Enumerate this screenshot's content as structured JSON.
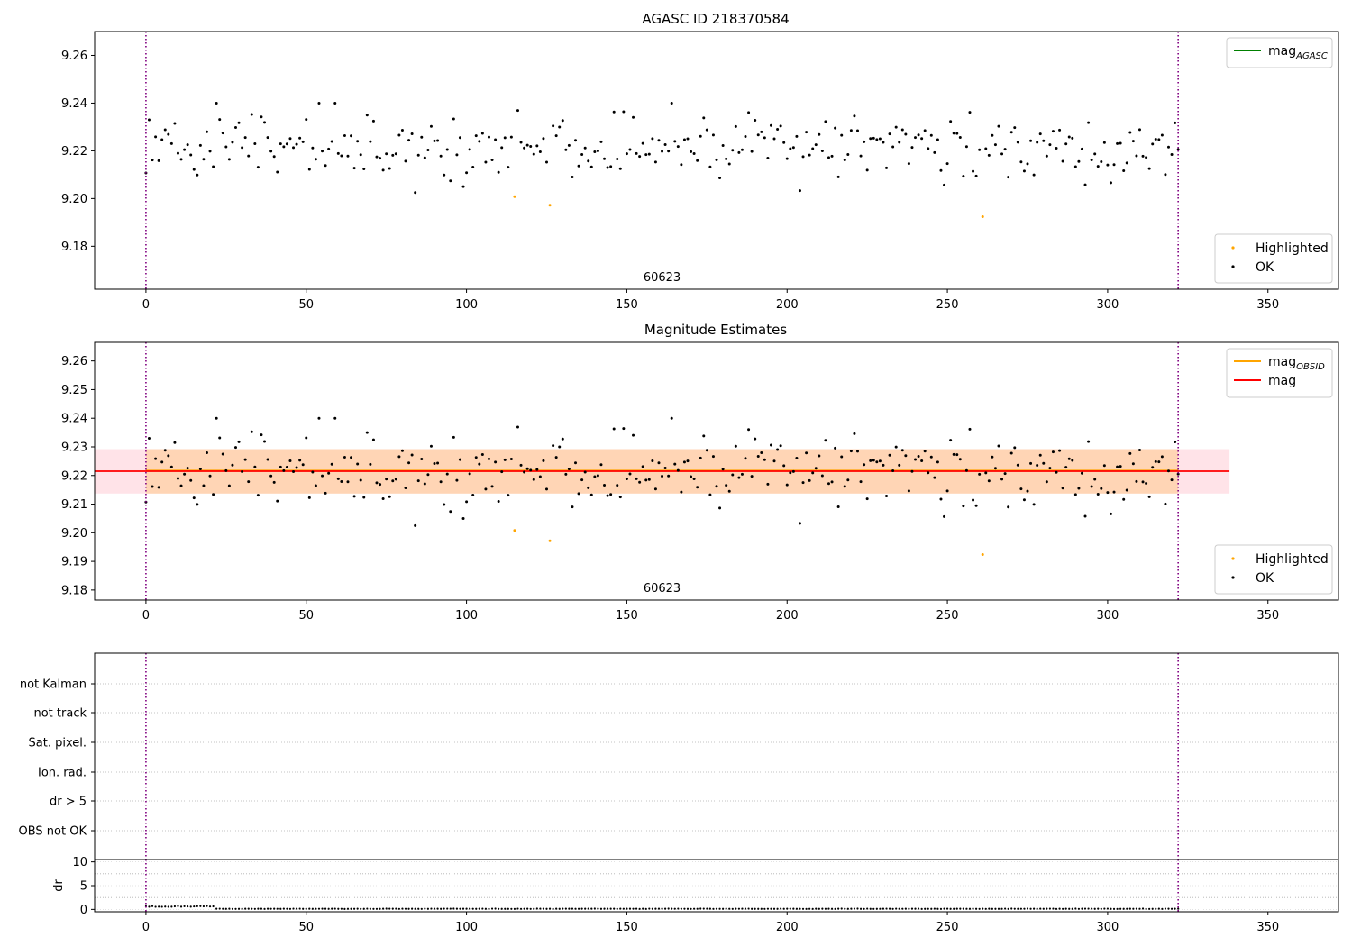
{
  "figure": {
    "title": "AGASC ID 218370584"
  },
  "chart_data": [
    {
      "id": "agasc",
      "type": "scatter",
      "title": "",
      "xlim": [
        -16,
        372
      ],
      "ylim": [
        9.162,
        9.27
      ],
      "x_ticks": [
        0,
        50,
        100,
        150,
        200,
        250,
        300,
        350
      ],
      "y_ticks": [
        9.18,
        9.2,
        9.22,
        9.24,
        9.26
      ],
      "y_tick_decimals": 2,
      "obsid_annotation": {
        "text": "60623",
        "x": 161
      },
      "vlines": [
        {
          "x": 0,
          "color": "#800080"
        },
        {
          "x": 322,
          "color": "#800080"
        }
      ],
      "legend_lines": [
        {
          "label": "mag",
          "sub": "AGASC",
          "color": "#008000"
        }
      ],
      "legend_points": [
        {
          "label": "Highlighted",
          "color": "#ffa500"
        },
        {
          "label": "OK",
          "color": "#000000"
        }
      ],
      "highlighted": [
        {
          "x": 115,
          "y": 9.2008
        },
        {
          "x": 126,
          "y": 9.1972
        },
        {
          "x": 261,
          "y": 9.1924
        }
      ]
    },
    {
      "id": "estimates",
      "type": "scatter",
      "title": "Magnitude Estimates",
      "xlim": [
        -16,
        372
      ],
      "ylim": [
        9.1765,
        9.2665
      ],
      "x_ticks": [
        0,
        50,
        100,
        150,
        200,
        250,
        300,
        350
      ],
      "y_ticks": [
        9.18,
        9.19,
        9.2,
        9.21,
        9.22,
        9.23,
        9.24,
        9.25,
        9.26
      ],
      "y_tick_decimals": 2,
      "obsid_annotation": {
        "text": "60623",
        "x": 161
      },
      "vlines": [
        {
          "x": 0,
          "color": "#800080"
        },
        {
          "x": 322,
          "color": "#800080"
        }
      ],
      "legend_lines": [
        {
          "label": "mag",
          "sub": "OBSID",
          "color": "#ffa500"
        },
        {
          "label": "mag",
          "sub": "",
          "color": "#ff0000"
        }
      ],
      "legend_points": [
        {
          "label": "Highlighted",
          "color": "#ffa500"
        },
        {
          "label": "OK",
          "color": "#000000"
        }
      ],
      "mag_obsid": {
        "value": 9.2215,
        "band": [
          9.2137,
          9.2292
        ],
        "x_range": [
          0,
          322
        ]
      },
      "mag": {
        "value": 9.2215,
        "band": [
          9.2137,
          9.2292
        ],
        "x_range": [
          -16,
          338
        ]
      },
      "highlighted": [
        {
          "x": 115,
          "y": 9.2008
        },
        {
          "x": 126,
          "y": 9.1972
        },
        {
          "x": 261,
          "y": 9.1924
        }
      ]
    },
    {
      "id": "flags",
      "type": "scatter",
      "title": "",
      "xlim": [
        -16,
        372
      ],
      "categories": [
        "not Kalman",
        "not track",
        "Sat. pixel.",
        "Ion. rad.",
        "dr > 5",
        "OBS not OK"
      ],
      "vlines": [
        {
          "x": 0,
          "color": "#800080"
        },
        {
          "x": 322,
          "color": "#800080"
        }
      ]
    },
    {
      "id": "dr",
      "type": "scatter",
      "title": "",
      "ylabel": "dr",
      "xlim": [
        -16,
        372
      ],
      "ylim": [
        -0.5,
        10.5
      ],
      "x_ticks": [
        0,
        50,
        100,
        150,
        200,
        250,
        300,
        350
      ],
      "y_ticks": [
        0,
        5,
        10
      ],
      "y_tick_decimals": 0,
      "vlines": [
        {
          "x": 0,
          "color": "#800080"
        },
        {
          "x": 322,
          "color": "#800080"
        }
      ]
    }
  ]
}
